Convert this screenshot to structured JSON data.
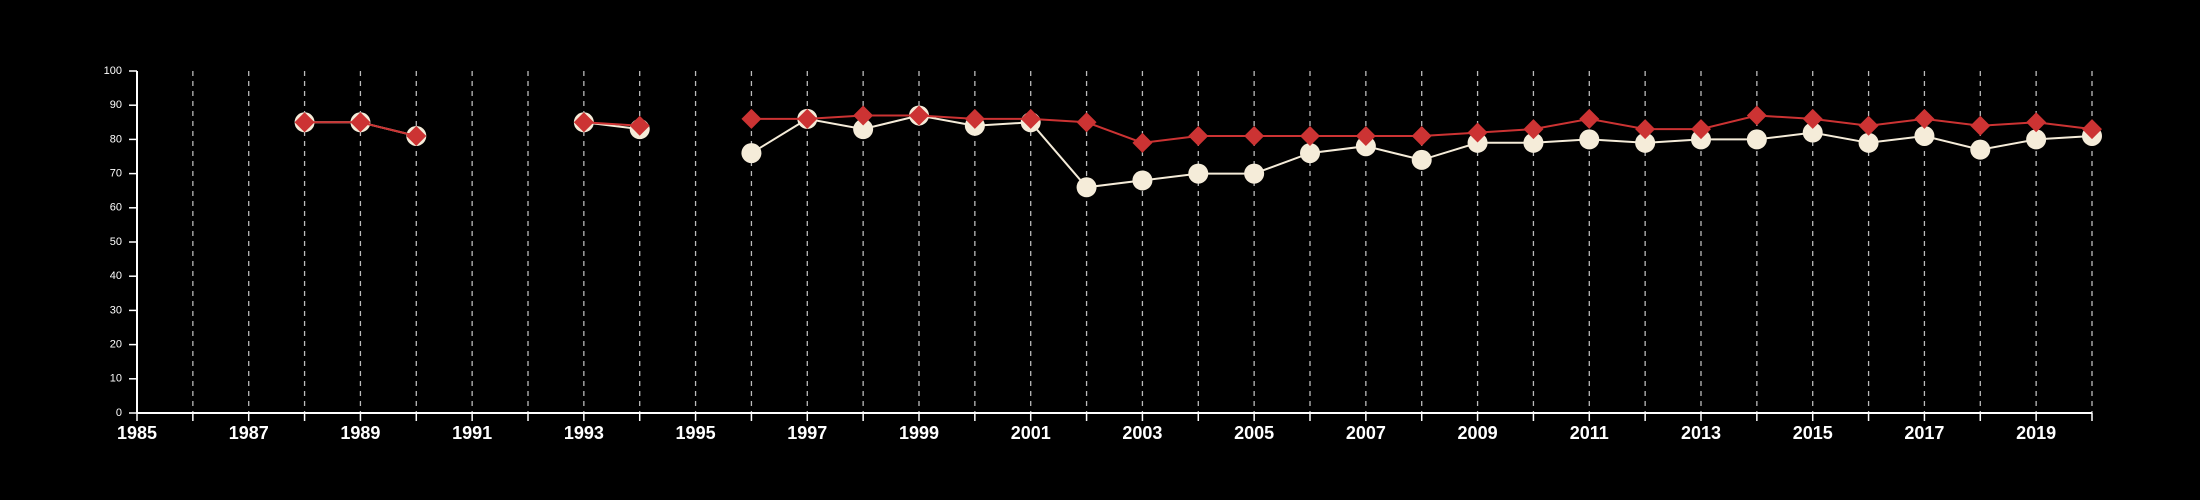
{
  "chart_data": {
    "type": "line",
    "title": "",
    "xlabel": "",
    "ylabel": "",
    "xlim": [
      1985,
      2020
    ],
    "ylim": [
      0,
      100
    ],
    "grid": "vertical dashed lines at every year",
    "legend": "none",
    "y_ticks": [
      "0",
      "10",
      "20",
      "30",
      "40",
      "50",
      "60",
      "70",
      "80",
      "90",
      "100"
    ],
    "x_tick_labels": [
      "1985",
      "1987",
      "1989",
      "1991",
      "1993",
      "1995",
      "1997",
      "1999",
      "2001",
      "2003",
      "2005",
      "2007",
      "2009",
      "2011",
      "2013",
      "2015",
      "2017",
      "2019"
    ],
    "colors": {
      "background": "#000000",
      "axis": "#ffffff",
      "grid": "#bbbbbb",
      "cream_series": "#f5ecd9",
      "red_series": "#cc3333"
    },
    "series": [
      {
        "marker": "circle",
        "color": "#f5ecd9",
        "segments": [
          [
            [
              1988,
              85
            ],
            [
              1989,
              85
            ],
            [
              1990,
              81
            ]
          ],
          [
            [
              1993,
              85
            ],
            [
              1994,
              83
            ]
          ],
          [
            [
              1996,
              76
            ],
            [
              1997,
              86
            ],
            [
              1998,
              83
            ],
            [
              1999,
              87
            ],
            [
              2000,
              84
            ],
            [
              2001,
              85
            ],
            [
              2002,
              66
            ],
            [
              2003,
              68
            ],
            [
              2004,
              70
            ],
            [
              2005,
              70
            ],
            [
              2006,
              76
            ],
            [
              2007,
              78
            ],
            [
              2008,
              74
            ],
            [
              2009,
              79
            ],
            [
              2010,
              79
            ],
            [
              2011,
              80
            ],
            [
              2012,
              79
            ],
            [
              2013,
              80
            ],
            [
              2014,
              80
            ],
            [
              2015,
              82
            ],
            [
              2016,
              79
            ],
            [
              2017,
              81
            ],
            [
              2018,
              77
            ],
            [
              2019,
              80
            ],
            [
              2020,
              81
            ]
          ]
        ]
      },
      {
        "marker": "diamond",
        "color": "#cc3333",
        "segments": [
          [
            [
              1988,
              85
            ],
            [
              1989,
              85
            ],
            [
              1990,
              81
            ]
          ],
          [
            [
              1993,
              85
            ],
            [
              1994,
              84
            ]
          ],
          [
            [
              1996,
              86
            ],
            [
              1997,
              86
            ],
            [
              1998,
              87
            ],
            [
              1999,
              87
            ],
            [
              2000,
              86
            ],
            [
              2001,
              86
            ],
            [
              2002,
              85
            ],
            [
              2003,
              79
            ],
            [
              2004,
              81
            ],
            [
              2005,
              81
            ],
            [
              2006,
              81
            ],
            [
              2007,
              81
            ],
            [
              2008,
              81
            ],
            [
              2009,
              82
            ],
            [
              2010,
              83
            ],
            [
              2011,
              86
            ],
            [
              2012,
              83
            ],
            [
              2013,
              83
            ],
            [
              2014,
              87
            ],
            [
              2015,
              86
            ],
            [
              2016,
              84
            ],
            [
              2017,
              86
            ],
            [
              2018,
              84
            ],
            [
              2019,
              85
            ],
            [
              2020,
              83
            ]
          ]
        ]
      }
    ]
  }
}
